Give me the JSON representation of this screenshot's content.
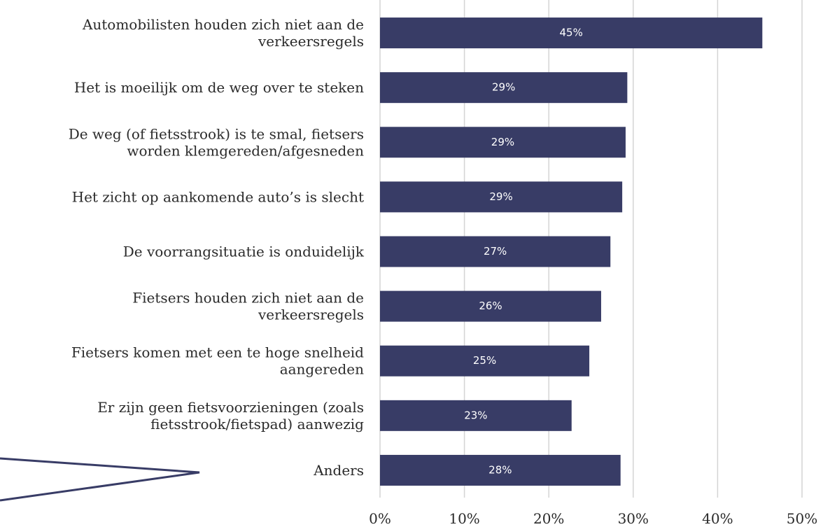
{
  "chart_data": {
    "type": "barh",
    "categories": [
      "Automobilisten houden zich niet aan de\nverkeersregels",
      "Het is moeilijk om de weg over te steken",
      "De weg (of fietsstrook) is te smal, fietsers\nworden klemgereden/afgesneden",
      "Het zicht op aankomende auto’s is slecht",
      "De voorrangsituatie is onduidelijk",
      "Fietsers houden zich niet aan de\nverkeersregels",
      "Fietsers komen met een te hoge snelheid\naangereden",
      "Er zijn geen fietsvoorzieningen (zoals\nfietsstrook/fietspad) aanwezig",
      "Anders"
    ],
    "values": [
      45.3,
      29.3,
      29.1,
      28.7,
      27.3,
      26.2,
      24.8,
      22.7,
      28.5
    ],
    "value_labels": [
      "45%",
      "29%",
      "29%",
      "29%",
      "27%",
      "26%",
      "25%",
      "23%",
      "28%"
    ],
    "color": "#383c66",
    "xlim": [
      0,
      50
    ],
    "xticks": [
      {
        "value": 0,
        "label": "0%"
      },
      {
        "value": 10,
        "label": "10%"
      },
      {
        "value": 20,
        "label": "20%"
      },
      {
        "value": 30,
        "label": "30%"
      },
      {
        "value": 40,
        "label": "40%"
      },
      {
        "value": 50,
        "label": "50%"
      }
    ],
    "grid": true
  }
}
